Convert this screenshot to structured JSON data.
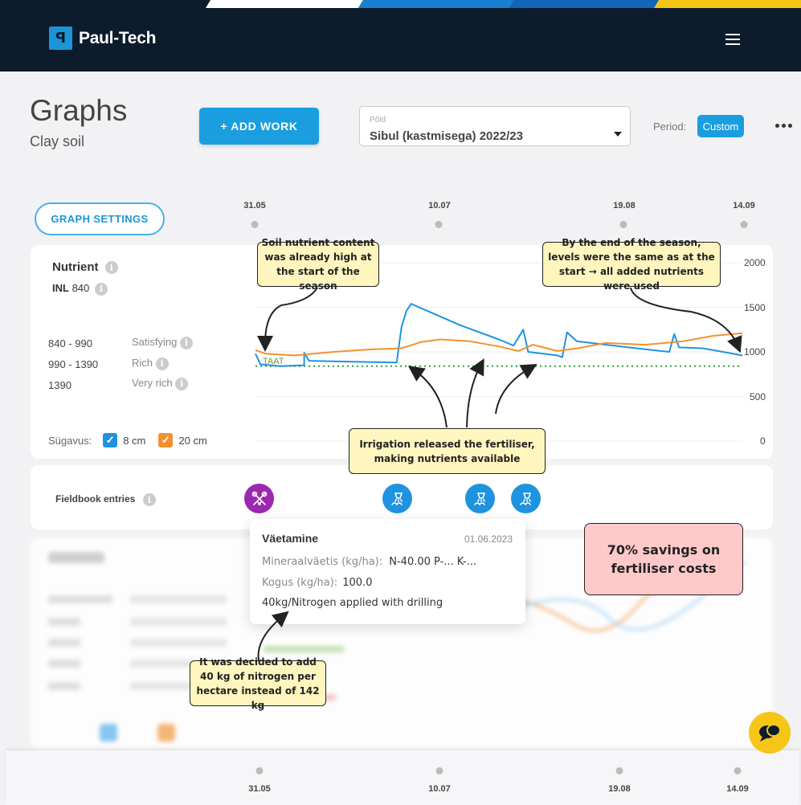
{
  "header": {
    "brand": "Paul-Tech",
    "logo_glyph": "ꟼ"
  },
  "page": {
    "title": "Graphs",
    "subtitle": "Clay soil"
  },
  "toolbar": {
    "add_work_label": "+ ADD WORK",
    "field_select_label": "Põld",
    "field_select_value": "Sibul (kastmisega) 2022/23",
    "period_label": "Period:",
    "period_value": "Custom"
  },
  "graph_settings_label": "GRAPH SETTINGS",
  "timeline": {
    "dates": [
      "31.05",
      "10.07",
      "19.08",
      "14.09"
    ]
  },
  "nutrient_panel": {
    "title": "Nutrient",
    "inl_label": "INL",
    "inl_value": "840",
    "ranges": [
      {
        "range": "840 - 990",
        "label": "Satisfying"
      },
      {
        "range": "990 - 1390",
        "label": "Rich"
      },
      {
        "range": "1390",
        "label": "Very rich"
      }
    ],
    "depth_label": "Sügavus:",
    "depths": [
      {
        "label": "8 cm",
        "color": "#1f93e0"
      },
      {
        "label": "20 cm",
        "color": "#f2922e"
      }
    ],
    "y_ticks": [
      "2000",
      "1500",
      "1000",
      "500",
      "0"
    ],
    "baseline_label": "TAAT"
  },
  "chart_data": {
    "type": "line",
    "title": "",
    "xlabel": "",
    "ylabel": "",
    "ylim": [
      0,
      2000
    ],
    "x": [
      "31.05",
      "10.07",
      "19.08",
      "14.09"
    ],
    "reference_line": {
      "value": 840,
      "style": "dotted",
      "color": "#2e9e3a"
    },
    "series": [
      {
        "name": "8 cm",
        "color": "#1f93e0",
        "points": [
          [
            0,
            980
          ],
          [
            0.01,
            860
          ],
          [
            0.05,
            840
          ],
          [
            0.1,
            850
          ],
          [
            0.1,
            990
          ],
          [
            0.11,
            900
          ],
          [
            0.2,
            890
          ],
          [
            0.29,
            880
          ],
          [
            0.3,
            1280
          ],
          [
            0.31,
            1460
          ],
          [
            0.32,
            1540
          ],
          [
            0.34,
            1490
          ],
          [
            0.37,
            1420
          ],
          [
            0.42,
            1300
          ],
          [
            0.47,
            1200
          ],
          [
            0.5,
            1140
          ],
          [
            0.53,
            1070
          ],
          [
            0.55,
            1250
          ],
          [
            0.56,
            1000
          ],
          [
            0.62,
            960
          ],
          [
            0.63,
            940
          ],
          [
            0.64,
            1220
          ],
          [
            0.66,
            1120
          ],
          [
            0.72,
            1080
          ],
          [
            0.8,
            1030
          ],
          [
            0.85,
            1000
          ],
          [
            0.86,
            1200
          ],
          [
            0.87,
            1050
          ],
          [
            0.92,
            1040
          ],
          [
            0.96,
            1000
          ],
          [
            1.0,
            960
          ]
        ]
      },
      {
        "name": "20 cm",
        "color": "#f2922e",
        "points": [
          [
            0,
            1020
          ],
          [
            0.02,
            980
          ],
          [
            0.08,
            960
          ],
          [
            0.16,
            1000
          ],
          [
            0.24,
            1030
          ],
          [
            0.3,
            1040
          ],
          [
            0.34,
            1110
          ],
          [
            0.38,
            1140
          ],
          [
            0.44,
            1120
          ],
          [
            0.5,
            1060
          ],
          [
            0.54,
            1010
          ],
          [
            0.57,
            1080
          ],
          [
            0.62,
            1010
          ],
          [
            0.66,
            1040
          ],
          [
            0.72,
            1100
          ],
          [
            0.8,
            1080
          ],
          [
            0.88,
            1120
          ],
          [
            0.94,
            1180
          ],
          [
            1.0,
            1210
          ]
        ]
      }
    ]
  },
  "fieldbook": {
    "label": "Fieldbook entries",
    "entries": [
      {
        "icon": "seeding-icon",
        "color": "#9c27b0"
      },
      {
        "icon": "irrigation-icon",
        "color": "#1f93e0"
      },
      {
        "icon": "irrigation-icon",
        "color": "#1f93e0"
      },
      {
        "icon": "irrigation-icon",
        "color": "#1f93e0"
      }
    ]
  },
  "popup": {
    "title": "Väetamine",
    "date": "01.06.2023",
    "fertiliser_label": "Mineraalväetis (kg/ha):",
    "fertiliser_value": "N-40.00 P-... K-...",
    "amount_label": "Kogus (kg/ha):",
    "amount_value": "100.0",
    "note": "40kg/Nitrogen applied with drilling"
  },
  "annotations": {
    "soil_start": "Soil nutrient content was already high at the start of the season",
    "season_end": "By the end of the season, levels were the same as at the start → all added nutrients were used",
    "irrigation": "Irrigation released the fertiliser, making nutrients available",
    "nitrogen": "It was decided to add 40 kg of nitrogen per hectare instead of 142 kg",
    "savings": "70% savings on fertiliser costs"
  }
}
